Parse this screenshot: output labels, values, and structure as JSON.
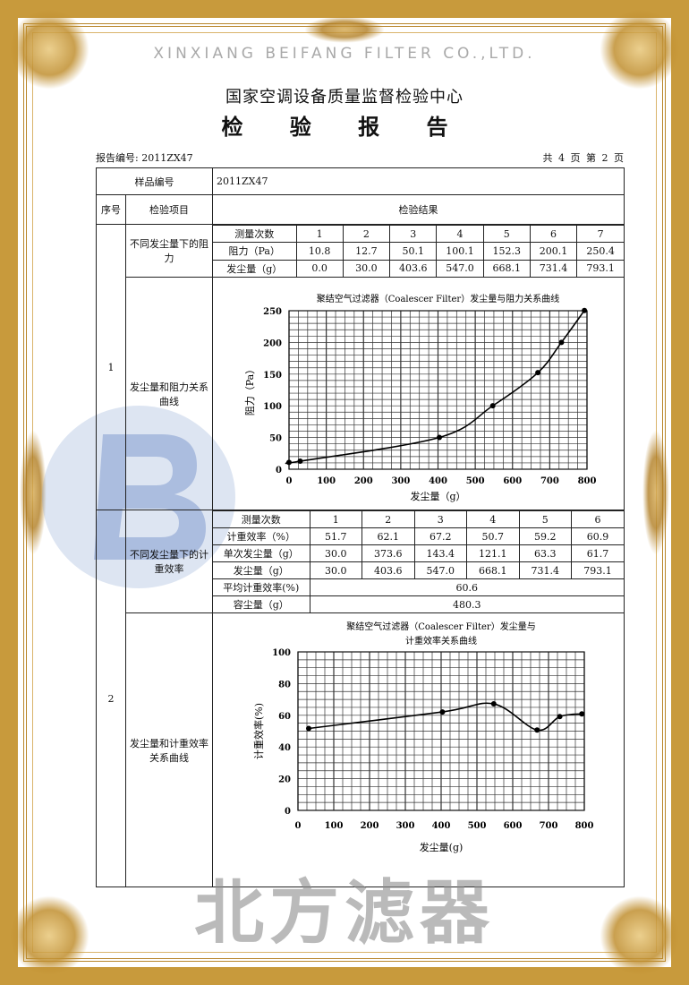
{
  "header": {
    "org": "国家空调设备质量监督检验中心",
    "title": "检 验 报 告",
    "report_no": "报告编号: 2011ZX47",
    "pages": "共 4 页 第 2 页"
  },
  "table": {
    "sample_label": "样品编号",
    "sample_value": "2011ZX47",
    "col_no": "序号",
    "col_item": "检验项目",
    "col_result": "检验结果",
    "sections": [
      {
        "no": "1",
        "item1": "不同发尘量下的阻力",
        "item2": "发尘量和阻力关系曲线",
        "rows": [
          {
            "label": "测量次数",
            "values": [
              "1",
              "2",
              "3",
              "4",
              "5",
              "6",
              "7"
            ]
          },
          {
            "label": "阻力（Pa）",
            "values": [
              "10.8",
              "12.7",
              "50.1",
              "100.1",
              "152.3",
              "200.1",
              "250.4"
            ]
          },
          {
            "label": "发尘量（g）",
            "values": [
              "0.0",
              "30.0",
              "403.6",
              "547.0",
              "668.1",
              "731.4",
              "793.1"
            ]
          }
        ]
      },
      {
        "no": "2",
        "item1": "不同发尘量下的计重效率",
        "item2": "发尘量和计重效率关系曲线",
        "rows": [
          {
            "label": "测量次数",
            "values": [
              "1",
              "2",
              "3",
              "4",
              "5",
              "6"
            ]
          },
          {
            "label": "计重效率（%）",
            "values": [
              "51.7",
              "62.1",
              "67.2",
              "50.7",
              "59.2",
              "60.9"
            ]
          },
          {
            "label": "单次发尘量（g）",
            "values": [
              "30.0",
              "373.6",
              "143.4",
              "121.1",
              "63.3",
              "61.7"
            ]
          },
          {
            "label": "发尘量（g）",
            "values": [
              "30.0",
              "403.6",
              "547.0",
              "668.1",
              "731.4",
              "793.1"
            ]
          }
        ],
        "avg_label": "平均计重效率(%)",
        "avg_value": "60.6",
        "capacity_label": "容尘量（g）",
        "capacity_value": "480.3"
      }
    ]
  },
  "chart_data": [
    {
      "type": "line",
      "title": "聚结空气过滤器（Coalescer Filter）发尘量与阻力关系曲线",
      "xlabel": "发尘量（g）",
      "ylabel": "阻力（Pa）",
      "xlim": [
        0,
        800
      ],
      "ylim": [
        0,
        250
      ],
      "xticks": [
        "0",
        "100",
        "200",
        "300",
        "400",
        "500",
        "600",
        "700",
        "800"
      ],
      "yticks": [
        "0",
        "50",
        "100",
        "150",
        "200",
        "250"
      ],
      "grid": true,
      "x": [
        0,
        30,
        403.6,
        547,
        668.1,
        731.4,
        793.1
      ],
      "y": [
        10.8,
        12.7,
        50.1,
        100.1,
        152.3,
        200.1,
        250.4
      ]
    },
    {
      "type": "line",
      "title": "聚结空气过滤器（Coalescer Filter）发尘量与",
      "title_line2": "计重效率关系曲线",
      "xlabel": "发尘量(g)",
      "ylabel": "计重效率(%)",
      "xlim": [
        0,
        800
      ],
      "ylim": [
        0,
        100
      ],
      "xticks": [
        "0",
        "100",
        "200",
        "300",
        "400",
        "500",
        "600",
        "700",
        "800"
      ],
      "yticks": [
        "0",
        "20",
        "40",
        "60",
        "80",
        "100"
      ],
      "grid": true,
      "x": [
        30,
        403.6,
        547,
        668.1,
        731.4,
        793.1
      ],
      "y": [
        51.7,
        62.1,
        67.2,
        50.7,
        59.2,
        60.9
      ]
    }
  ],
  "watermark": {
    "logo_letter": "B",
    "brand_cn": "北方滤器",
    "brand_en": "XINXIANG BEIFANG FILTER CO.,LTD.",
    "logo_color": "#8fa9d4",
    "text_color": "#9a9a9a"
  },
  "frame_color": "#c89a3c"
}
